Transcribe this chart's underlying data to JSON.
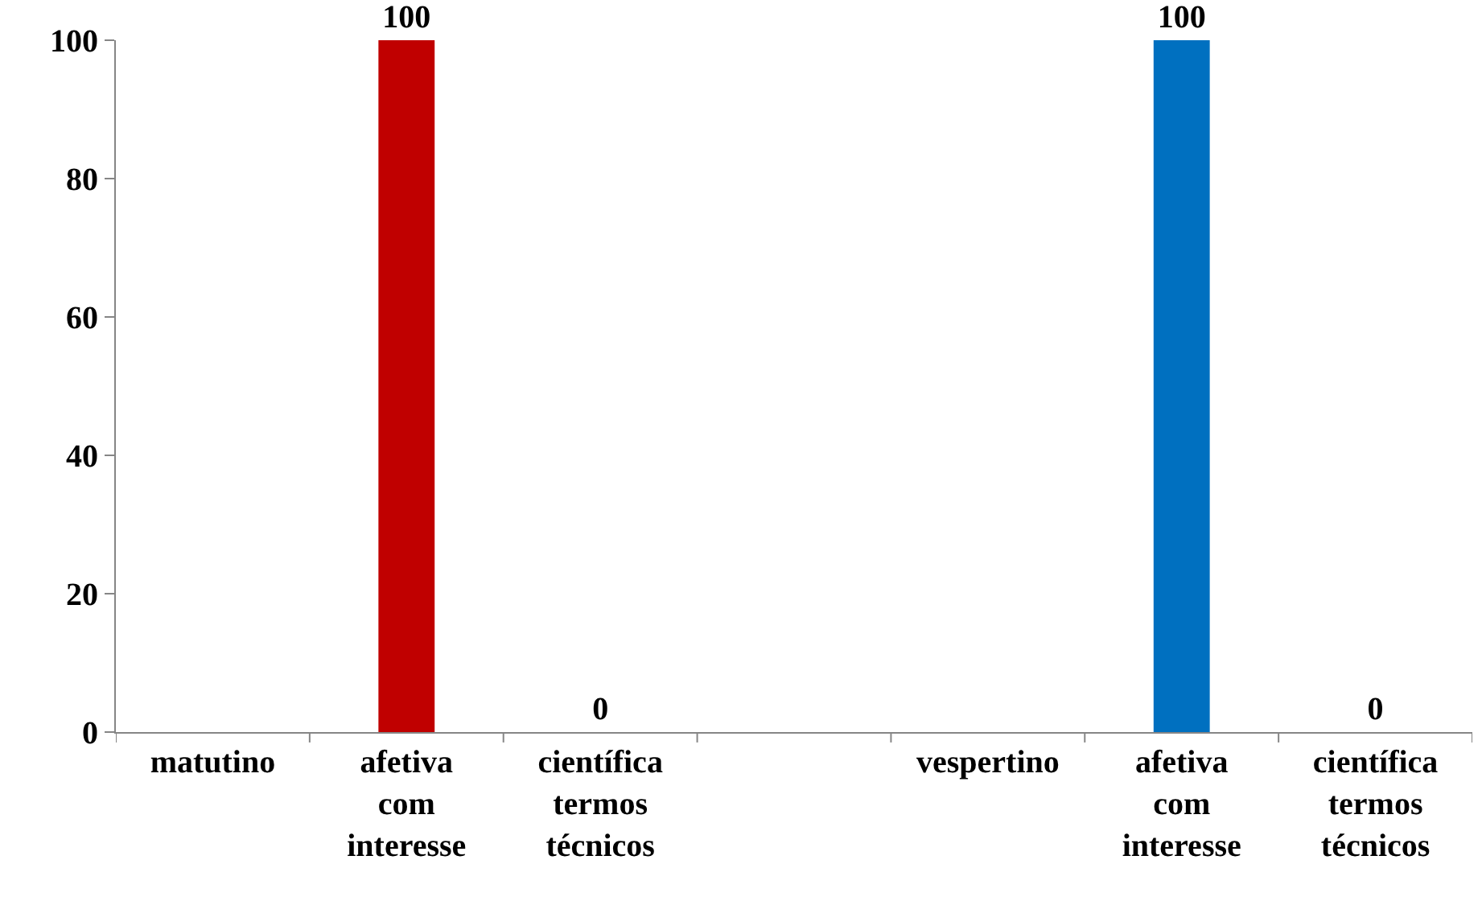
{
  "chart_data": {
    "type": "bar",
    "categories": [
      "matutino",
      "afetiva com interesse",
      "científica termos técnicos",
      null,
      "vespertino",
      "afetiva com interesse",
      "científica termos técnicos"
    ],
    "values": [
      null,
      100,
      0,
      null,
      null,
      100,
      0
    ],
    "colors": [
      "#c00000",
      "#c00000",
      "#c00000",
      "#0070c0",
      "#0070c0",
      "#0070c0",
      "#0070c0"
    ],
    "value_labels": [
      null,
      "100",
      "0",
      null,
      null,
      "100",
      "0"
    ],
    "ylim": [
      0,
      100
    ],
    "yticks": [
      0,
      20,
      40,
      60,
      80,
      100
    ],
    "grid": false
  }
}
